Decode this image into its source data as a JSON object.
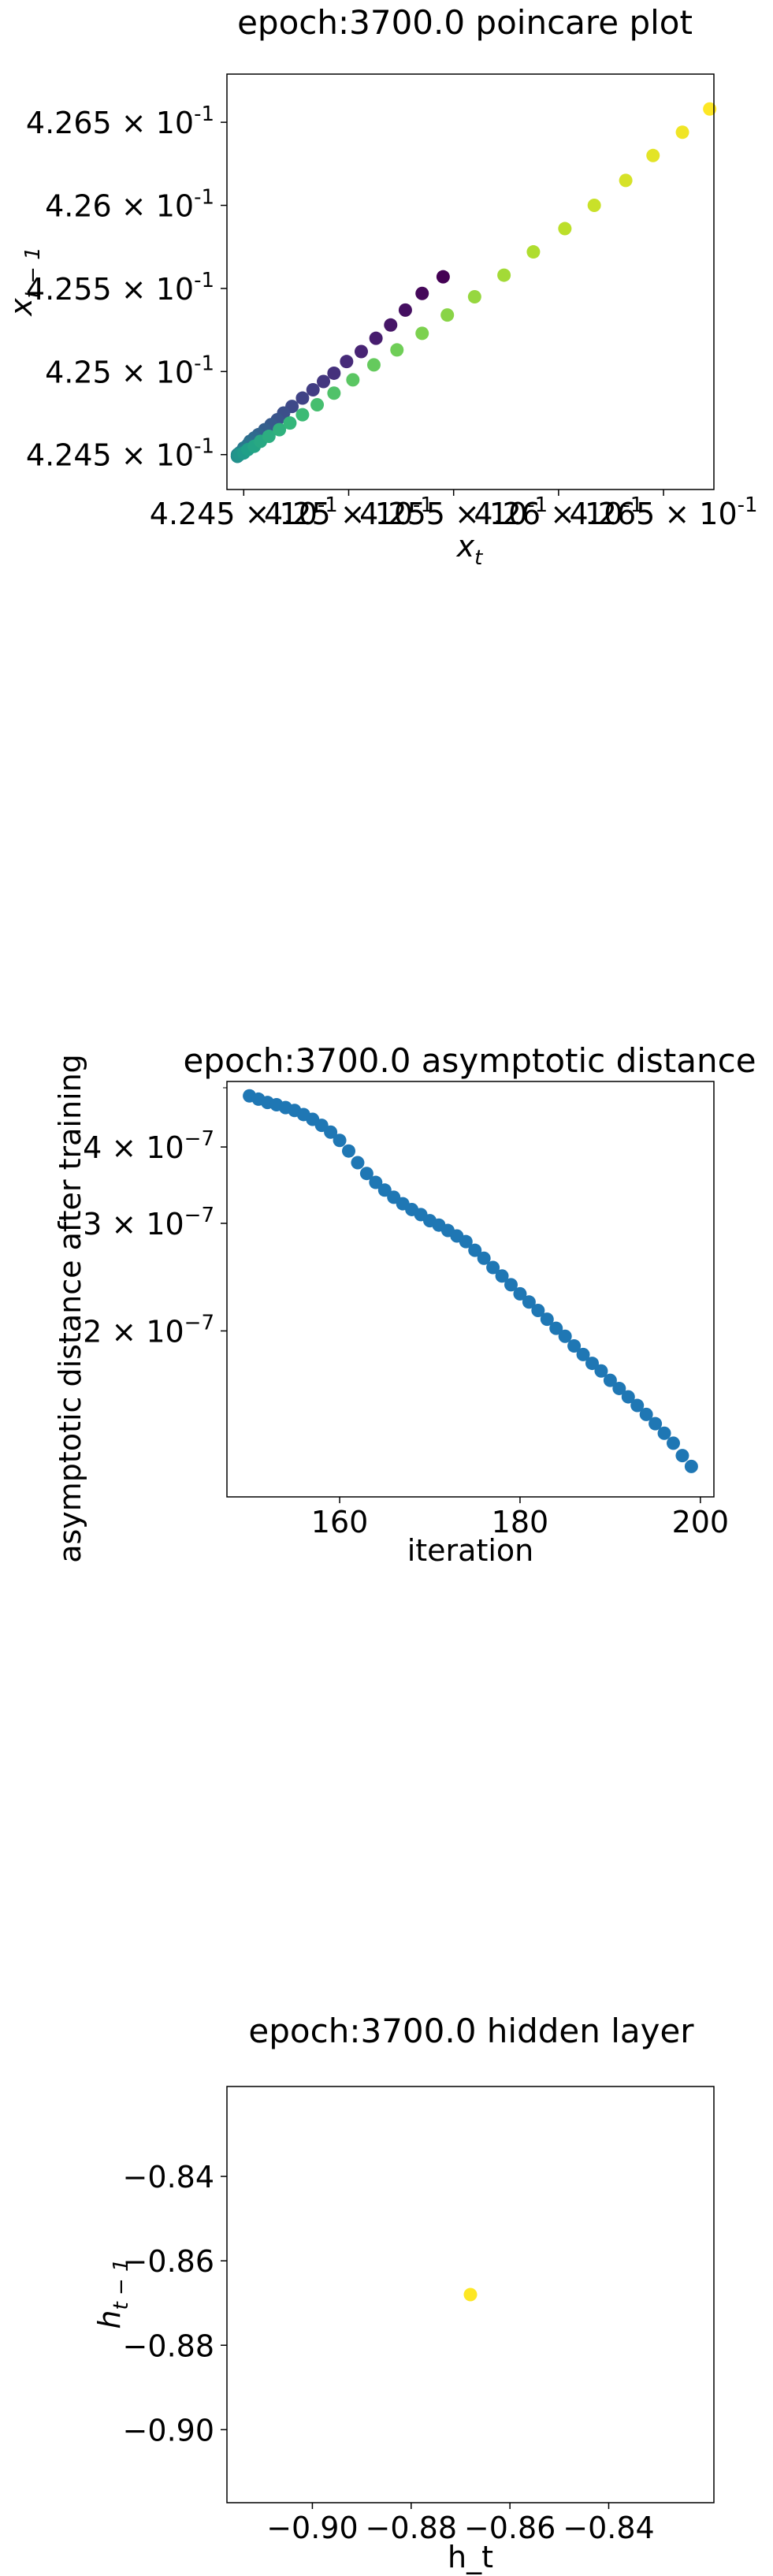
{
  "chart_data": [
    {
      "type": "scatter",
      "title": "epoch:3700.0 poincare plot",
      "xlabel": "x_t",
      "ylabel": "x_{t-1}",
      "xlim": [
        0.42442,
        0.42674
      ],
      "ylim": [
        0.42429,
        0.42679
      ],
      "xticks": [
        {
          "value": 0.4245,
          "mantissa": "4.245"
        },
        {
          "value": 0.425,
          "mantissa": "4.25"
        },
        {
          "value": 0.4255,
          "mantissa": "4.255"
        },
        {
          "value": 0.426,
          "mantissa": "4.26"
        },
        {
          "value": 0.4265,
          "mantissa": "4.265"
        }
      ],
      "yticks": [
        {
          "value": 0.4245,
          "mantissa": "4.245"
        },
        {
          "value": 0.425,
          "mantissa": "4.25"
        },
        {
          "value": 0.4255,
          "mantissa": "4.255"
        },
        {
          "value": 0.426,
          "mantissa": "4.26"
        },
        {
          "value": 0.4265,
          "mantissa": "4.265"
        }
      ],
      "tick_exponent": "-1",
      "colormap": "viridis",
      "grid": false,
      "x": [
        0.42545,
        0.42535,
        0.42527,
        0.4252,
        0.42513,
        0.42506,
        0.42499,
        0.42493,
        0.42488,
        0.42483,
        0.42478,
        0.42473,
        0.42469,
        0.42466,
        0.42463,
        0.4246,
        0.42457,
        0.42455,
        0.42453,
        0.42452,
        0.4245,
        0.42449,
        0.42448,
        0.42447,
        0.42447,
        0.42447,
        0.42448,
        0.4245,
        0.42452,
        0.42455,
        0.42458,
        0.42462,
        0.42467,
        0.42472,
        0.42478,
        0.42485,
        0.42493,
        0.42502,
        0.42512,
        0.42523,
        0.42535,
        0.42547,
        0.4256,
        0.42574,
        0.42588,
        0.42603,
        0.42617,
        0.42632,
        0.42645,
        0.42659,
        0.42672
      ],
      "y": [
        0.42557,
        0.42547,
        0.42537,
        0.42528,
        0.4252,
        0.42512,
        0.42506,
        0.42499,
        0.42494,
        0.42489,
        0.42484,
        0.42479,
        0.42475,
        0.42471,
        0.42468,
        0.42465,
        0.42462,
        0.4246,
        0.42458,
        0.42456,
        0.42454,
        0.42452,
        0.42451,
        0.4245,
        0.42449,
        0.42449,
        0.4245,
        0.42451,
        0.42453,
        0.42455,
        0.42458,
        0.42461,
        0.42465,
        0.42469,
        0.42474,
        0.4248,
        0.42487,
        0.42495,
        0.42504,
        0.42513,
        0.42523,
        0.42534,
        0.42545,
        0.42558,
        0.42572,
        0.42586,
        0.426,
        0.42615,
        0.4263,
        0.42644,
        0.42658
      ]
    },
    {
      "type": "scatter",
      "title": "epoch:3700.0 asymptotic distance",
      "xlabel": "iteration",
      "ylabel": "asymptotic distance after training",
      "yscale": "log",
      "xlim": [
        147.5,
        201.5
      ],
      "ylim": [
        1.07e-07,
        5.12e-07
      ],
      "xticks": [
        160,
        180,
        200
      ],
      "yticks": [
        {
          "value": 4e-07,
          "mantissa": "4",
          "exponent": "-7"
        },
        {
          "value": 3e-07,
          "mantissa": "3",
          "exponent": "-7"
        },
        {
          "value": 2e-07,
          "mantissa": "2",
          "exponent": "-7"
        }
      ],
      "color": "#1f77b4",
      "grid": false,
      "x": [
        150,
        151,
        152,
        153,
        154,
        155,
        156,
        157,
        158,
        159,
        160,
        161,
        162,
        163,
        164,
        165,
        166,
        167,
        168,
        169,
        170,
        171,
        172,
        173,
        174,
        175,
        176,
        177,
        178,
        179,
        180,
        181,
        182,
        183,
        184,
        185,
        186,
        187,
        188,
        189,
        190,
        191,
        192,
        193,
        194,
        195,
        196,
        197,
        198,
        199
      ],
      "y": [
        4.85e-07,
        4.79e-07,
        4.73e-07,
        4.69e-07,
        4.64e-07,
        4.59e-07,
        4.52e-07,
        4.44e-07,
        4.34e-07,
        4.23e-07,
        4.1e-07,
        3.94e-07,
        3.77e-07,
        3.62e-07,
        3.5e-07,
        3.4e-07,
        3.31e-07,
        3.23e-07,
        3.16e-07,
        3.1e-07,
        3.03e-07,
        2.98e-07,
        2.92e-07,
        2.86e-07,
        2.8e-07,
        2.71e-07,
        2.63e-07,
        2.54e-07,
        2.46e-07,
        2.38e-07,
        2.3e-07,
        2.23e-07,
        2.16e-07,
        2.09e-07,
        2.02e-07,
        1.96e-07,
        1.89e-07,
        1.83e-07,
        1.77e-07,
        1.72e-07,
        1.66e-07,
        1.61e-07,
        1.56e-07,
        1.51e-07,
        1.46e-07,
        1.41e-07,
        1.36e-07,
        1.31e-07,
        1.25e-07,
        1.2e-07
      ]
    },
    {
      "type": "scatter",
      "title": "epoch:3700.0 hidden layer",
      "xlabel": "h_t",
      "ylabel": "h_{t-1}",
      "xlim": [
        -0.9173,
        -0.8187
      ],
      "ylim": [
        -0.9173,
        -0.8187
      ],
      "xticks": [
        -0.9,
        -0.88,
        -0.86,
        -0.84
      ],
      "yticks": [
        -0.84,
        -0.86,
        -0.88,
        -0.9
      ],
      "tick_labels": [
        "−0.90",
        "−0.88",
        "−0.86",
        "−0.84"
      ],
      "color": "#fde725",
      "grid": false,
      "x": [
        -0.868
      ],
      "y": [
        -0.868
      ]
    }
  ]
}
